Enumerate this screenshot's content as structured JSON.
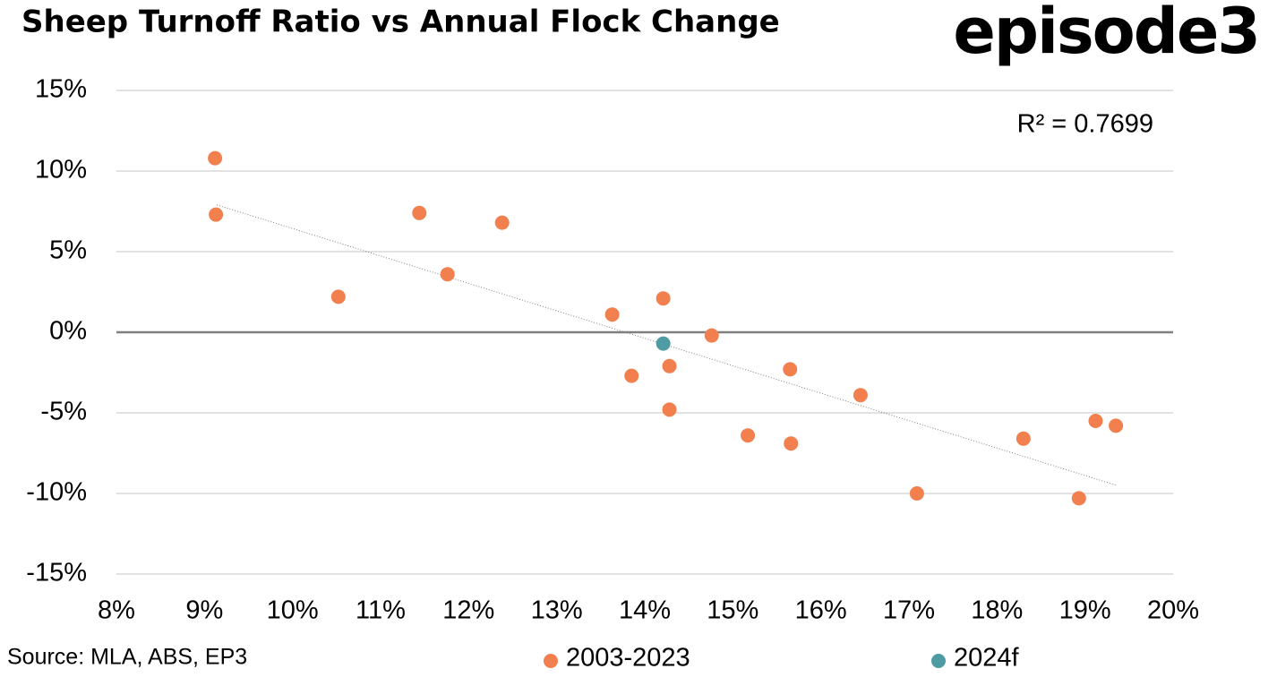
{
  "chart_data": {
    "type": "scatter",
    "title": "Sheep Turnoff Ratio vs Annual Flock Change",
    "logo": "episode3",
    "source": "Source: MLA, ABS, EP3",
    "annotation": "R² = 0.7699",
    "xlim": [
      8,
      20
    ],
    "ylim": [
      -15,
      15
    ],
    "xticks": [
      {
        "value": 8,
        "label": "8%"
      },
      {
        "value": 9,
        "label": "9%"
      },
      {
        "value": 10,
        "label": "10%"
      },
      {
        "value": 11,
        "label": "11%"
      },
      {
        "value": 12,
        "label": "12%"
      },
      {
        "value": 13,
        "label": "13%"
      },
      {
        "value": 14,
        "label": "14%"
      },
      {
        "value": 15,
        "label": "15%"
      },
      {
        "value": 16,
        "label": "16%"
      },
      {
        "value": 17,
        "label": "17%"
      },
      {
        "value": 18,
        "label": "18%"
      },
      {
        "value": 19,
        "label": "19%"
      },
      {
        "value": 20,
        "label": "20%"
      }
    ],
    "yticks": [
      {
        "value": -15,
        "label": "-15%"
      },
      {
        "value": -10,
        "label": "-10%"
      },
      {
        "value": -5,
        "label": "-5%"
      },
      {
        "value": 0,
        "label": "0%"
      },
      {
        "value": 5,
        "label": "5%"
      },
      {
        "value": 10,
        "label": "10%"
      },
      {
        "value": 15,
        "label": "15%"
      }
    ],
    "grid": true,
    "series": [
      {
        "name": "2003-2023",
        "color": "#f2804f",
        "x": [
          9.12,
          9.13,
          11.44,
          12.38,
          11.76,
          10.52,
          13.63,
          14.21,
          14.76,
          13.85,
          14.28,
          14.28,
          15.65,
          16.45,
          15.17,
          15.66,
          17.09,
          18.3,
          19.12,
          19.35,
          18.93
        ],
        "values": [
          10.8,
          7.3,
          7.4,
          6.8,
          3.6,
          2.2,
          1.1,
          2.1,
          -0.2,
          -2.7,
          -2.1,
          -4.8,
          -2.3,
          -3.9,
          -6.4,
          -6.9,
          -10.0,
          -6.6,
          -5.5,
          -5.8,
          -10.3
        ]
      },
      {
        "name": "2024f",
        "color": "#4e9ba4",
        "x": [
          14.21
        ],
        "values": [
          -0.7
        ]
      }
    ],
    "trendline": {
      "x": [
        9.14,
        19.36
      ],
      "values": [
        7.9,
        -9.5
      ],
      "color": "#808080"
    }
  }
}
